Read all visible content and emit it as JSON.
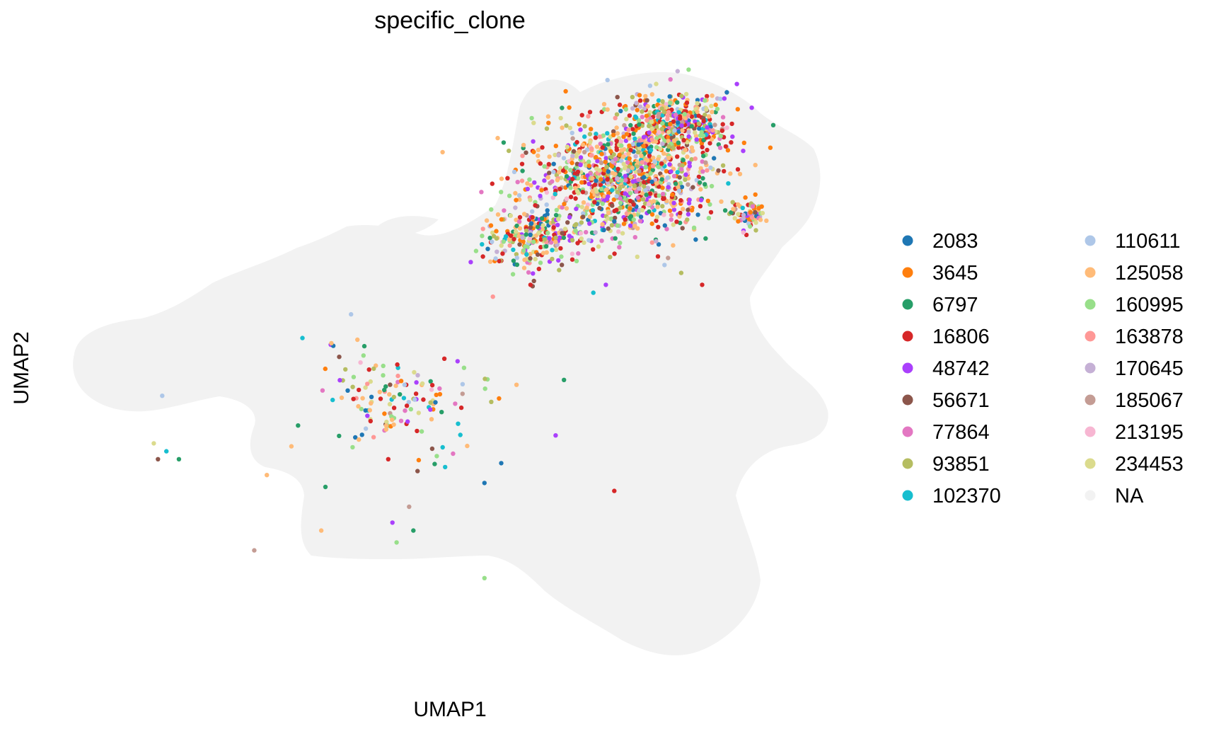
{
  "chart_data": {
    "type": "scatter",
    "title": "specific_clone",
    "xlabel": "UMAP1",
    "ylabel": "UMAP2",
    "grid": false,
    "axes_visible": false,
    "legend_position": "right",
    "background_color": "#f2f2f2",
    "background_label": "NA",
    "series": [
      {
        "name": "2083",
        "color": "#1f77b4",
        "weight": 4,
        "points": [
          [
            8.9,
            7.2
          ],
          [
            9.8,
            8.2
          ],
          [
            6.2,
            1.1
          ],
          [
            5.8,
            0.6
          ]
        ]
      },
      {
        "name": "3645",
        "color": "#ff7f0e",
        "weight": 12,
        "points": [
          [
            8.6,
            8.9
          ],
          [
            9.2,
            9.4
          ],
          [
            8.3,
            8.6
          ],
          [
            9.6,
            9.1
          ]
        ]
      },
      {
        "name": "6797",
        "color": "#279e68",
        "weight": 6,
        "points": [
          [
            -1.5,
            1.2
          ],
          [
            2.0,
            0.5
          ],
          [
            7.7,
            3.2
          ],
          [
            4.1,
            -0.6
          ]
        ]
      },
      {
        "name": "16806",
        "color": "#d62728",
        "weight": 16,
        "points": [
          [
            6.9,
            5.6
          ],
          [
            7.1,
            6.0
          ],
          [
            11.0,
            5.6
          ],
          [
            3.5,
            1.2
          ],
          [
            8.9,
            0.4
          ]
        ]
      },
      {
        "name": "48742",
        "color": "#aa40fc",
        "weight": 8,
        "points": [
          [
            8.7,
            5.6
          ],
          [
            7.5,
            1.8
          ],
          [
            3.6,
            -0.4
          ]
        ]
      },
      {
        "name": "56671",
        "color": "#8c564b",
        "weight": 4,
        "points": [
          [
            -2.0,
            1.2
          ],
          [
            4.2,
            0.9
          ]
        ]
      },
      {
        "name": "77864",
        "color": "#e377c2",
        "weight": 4,
        "points": [
          [
            9.4,
            6.8
          ],
          [
            5.1,
            2.6
          ]
        ]
      },
      {
        "name": "93851",
        "color": "#b5bd61",
        "weight": 6,
        "points": [
          [
            8.8,
            6.3
          ],
          [
            10.5,
            5.9
          ]
        ]
      },
      {
        "name": "102370",
        "color": "#17becf",
        "weight": 5,
        "points": [
          [
            8.4,
            5.4
          ],
          [
            4.8,
            1.5
          ],
          [
            -1.8,
            1.4
          ]
        ]
      },
      {
        "name": "110611",
        "color": "#aec7e8",
        "weight": 3,
        "points": [
          [
            -1.9,
            2.8
          ],
          [
            10.1,
            6.1
          ]
        ]
      },
      {
        "name": "125058",
        "color": "#ffbb78",
        "weight": 16,
        "points": [
          [
            10.6,
            9.0
          ],
          [
            10.2,
            8.8
          ],
          [
            0.6,
            0.8
          ],
          [
            1.9,
            -0.6
          ]
        ]
      },
      {
        "name": "160995",
        "color": "#98df8a",
        "weight": 9,
        "points": [
          [
            8.0,
            6.2
          ],
          [
            4.3,
            1.9
          ],
          [
            3.7,
            -0.9
          ],
          [
            5.8,
            -1.8
          ]
        ]
      },
      {
        "name": "163878",
        "color": "#ff9896",
        "weight": 3,
        "points": [
          [
            6.0,
            5.3
          ],
          [
            3.0,
            3.1
          ]
        ]
      },
      {
        "name": "170645",
        "color": "#c5b0d5",
        "weight": 3,
        "points": [
          [
            9.9,
            6.7
          ]
        ]
      },
      {
        "name": "185067",
        "color": "#c49c94",
        "weight": 3,
        "points": [
          [
            4.0,
            0.0
          ],
          [
            0.3,
            -1.1
          ]
        ]
      },
      {
        "name": "213195",
        "color": "#f7b6d2",
        "weight": 3,
        "points": [
          [
            8.1,
            6.9
          ]
        ]
      },
      {
        "name": "234453",
        "color": "#dbdb8d",
        "weight": 8,
        "points": [
          [
            7.2,
            7.1
          ],
          [
            9.1,
            6.9
          ],
          [
            -2.1,
            1.6
          ]
        ]
      },
      {
        "name": "NA",
        "color": "#f2f2f2",
        "weight": 0,
        "points": []
      }
    ]
  }
}
